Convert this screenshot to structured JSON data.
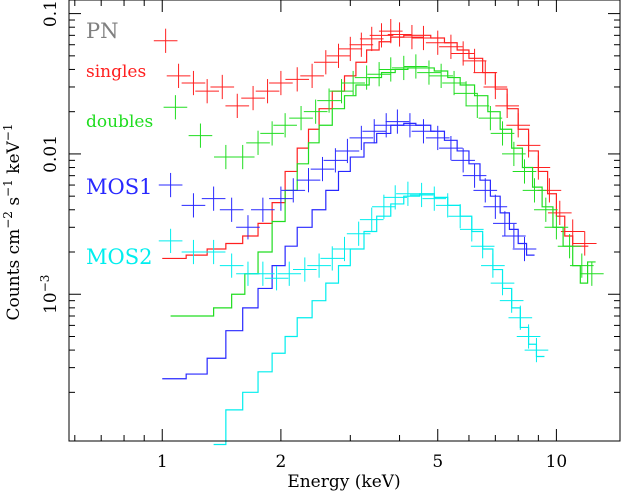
{
  "chart_data": {
    "type": "scatter",
    "xlabel": "Energy (keV)",
    "ylabel": "Counts cm",
    "ylabel_sup1": "−2",
    "ylabel_mid": " s",
    "ylabel_sup2": "−1",
    "ylabel_end": " keV",
    "ylabel_sup3": "−1",
    "xscale": "log",
    "yscale": "log",
    "xlim": [
      0.58,
      14.5
    ],
    "ylim": [
      9e-05,
      0.125
    ],
    "x_ticks": [
      {
        "value": 1,
        "label": "1"
      },
      {
        "value": 2,
        "label": "2"
      },
      {
        "value": 5,
        "label": "5"
      },
      {
        "value": 10,
        "label": "10"
      }
    ],
    "y_ticks": [
      {
        "value": 0.1,
        "label": "0.1"
      },
      {
        "value": 0.01,
        "label": "0.01"
      },
      {
        "value": 0.001,
        "label": "10",
        "sup": "−3"
      }
    ],
    "legend": {
      "title": {
        "text": "PN",
        "color": "#808080"
      },
      "items": [
        {
          "text": "singles",
          "color": "#ff2020"
        },
        {
          "text": "doubles",
          "color": "#20dd20"
        },
        {
          "text": "MOS1",
          "color": "#2828ff"
        },
        {
          "text": "MOS2",
          "color": "#00eeee"
        }
      ]
    },
    "series": [
      {
        "name": "singles",
        "color": "#ff2020",
        "model": [
          [
            1.0,
            0.0018
          ],
          [
            1.15,
            0.0019
          ],
          [
            1.3,
            0.0021
          ],
          [
            1.45,
            0.0023
          ],
          [
            1.6,
            0.0026
          ],
          [
            1.75,
            0.0032
          ],
          [
            1.9,
            0.0045
          ],
          [
            2.05,
            0.0075
          ],
          [
            2.2,
            0.011
          ],
          [
            2.35,
            0.015
          ],
          [
            2.5,
            0.021
          ],
          [
            2.7,
            0.028
          ],
          [
            2.9,
            0.036
          ],
          [
            3.1,
            0.045
          ],
          [
            3.3,
            0.055
          ],
          [
            3.55,
            0.063
          ],
          [
            3.8,
            0.068
          ],
          [
            4.1,
            0.07
          ],
          [
            4.4,
            0.07
          ],
          [
            4.8,
            0.067
          ],
          [
            5.2,
            0.062
          ],
          [
            5.6,
            0.055
          ],
          [
            6.0,
            0.048
          ],
          [
            6.5,
            0.038
          ],
          [
            7.0,
            0.029
          ],
          [
            7.5,
            0.021
          ],
          [
            8.0,
            0.015
          ],
          [
            8.5,
            0.0105
          ],
          [
            9.0,
            0.0075
          ],
          [
            9.5,
            0.0052
          ],
          [
            10.0,
            0.0036
          ],
          [
            10.5,
            0.0026
          ],
          [
            11.0,
            0.0022
          ],
          [
            11.5,
            0.0022
          ]
        ],
        "points": [
          [
            1.02,
            0.064
          ],
          [
            1.1,
            0.036
          ],
          [
            1.2,
            0.032
          ],
          [
            1.3,
            0.028
          ],
          [
            1.42,
            0.03
          ],
          [
            1.55,
            0.022
          ],
          [
            1.7,
            0.025
          ],
          [
            1.85,
            0.028
          ],
          [
            2.0,
            0.032
          ],
          [
            2.2,
            0.034
          ],
          [
            2.4,
            0.036
          ],
          [
            2.6,
            0.045
          ],
          [
            2.8,
            0.05
          ],
          [
            3.0,
            0.056
          ],
          [
            3.2,
            0.06
          ],
          [
            3.4,
            0.066
          ],
          [
            3.6,
            0.07
          ],
          [
            3.8,
            0.075
          ],
          [
            4.0,
            0.071
          ],
          [
            4.3,
            0.068
          ],
          [
            4.6,
            0.067
          ],
          [
            5.0,
            0.062
          ],
          [
            5.4,
            0.058
          ],
          [
            5.8,
            0.052
          ],
          [
            6.2,
            0.046
          ],
          [
            6.6,
            0.038
          ],
          [
            7.0,
            0.03
          ],
          [
            7.5,
            0.022
          ],
          [
            8.0,
            0.016
          ],
          [
            8.5,
            0.0115
          ],
          [
            9.0,
            0.008
          ],
          [
            9.6,
            0.0055
          ],
          [
            10.2,
            0.0038
          ],
          [
            11.0,
            0.0028
          ],
          [
            11.8,
            0.0023
          ]
        ]
      },
      {
        "name": "doubles",
        "color": "#20dd20",
        "model": [
          [
            1.05,
            0.0007
          ],
          [
            1.2,
            0.0007
          ],
          [
            1.35,
            0.0008
          ],
          [
            1.5,
            0.001
          ],
          [
            1.62,
            0.0014
          ],
          [
            1.75,
            0.002
          ],
          [
            1.9,
            0.0033
          ],
          [
            2.05,
            0.0055
          ],
          [
            2.2,
            0.0085
          ],
          [
            2.35,
            0.012
          ],
          [
            2.5,
            0.016
          ],
          [
            2.7,
            0.021
          ],
          [
            2.9,
            0.026
          ],
          [
            3.1,
            0.031
          ],
          [
            3.35,
            0.035
          ],
          [
            3.6,
            0.038
          ],
          [
            3.9,
            0.04
          ],
          [
            4.2,
            0.041
          ],
          [
            4.5,
            0.041
          ],
          [
            4.9,
            0.039
          ],
          [
            5.3,
            0.035
          ],
          [
            5.7,
            0.031
          ],
          [
            6.2,
            0.026
          ],
          [
            6.7,
            0.02
          ],
          [
            7.2,
            0.015
          ],
          [
            7.7,
            0.011
          ],
          [
            8.2,
            0.008
          ],
          [
            8.7,
            0.0058
          ],
          [
            9.2,
            0.0042
          ],
          [
            9.8,
            0.003
          ],
          [
            10.4,
            0.0022
          ],
          [
            11.0,
            0.0016
          ],
          [
            11.5,
            0.0012
          ],
          [
            12.0,
            0.0017
          ]
        ],
        "points": [
          [
            1.08,
            0.0215
          ],
          [
            1.25,
            0.0135
          ],
          [
            1.45,
            0.0095
          ],
          [
            1.6,
            0.0095
          ],
          [
            1.75,
            0.012
          ],
          [
            1.9,
            0.014
          ],
          [
            2.05,
            0.016
          ],
          [
            2.25,
            0.018
          ],
          [
            2.45,
            0.02
          ],
          [
            2.65,
            0.024
          ],
          [
            2.85,
            0.028
          ],
          [
            3.05,
            0.032
          ],
          [
            3.3,
            0.035
          ],
          [
            3.55,
            0.037
          ],
          [
            3.8,
            0.04
          ],
          [
            4.1,
            0.041
          ],
          [
            4.4,
            0.042
          ],
          [
            4.75,
            0.038
          ],
          [
            5.1,
            0.036
          ],
          [
            5.5,
            0.032
          ],
          [
            5.9,
            0.027
          ],
          [
            6.3,
            0.022
          ],
          [
            6.8,
            0.018
          ],
          [
            7.3,
            0.014
          ],
          [
            7.8,
            0.01
          ],
          [
            8.3,
            0.0075
          ],
          [
            8.8,
            0.0055
          ],
          [
            9.4,
            0.004
          ],
          [
            10.0,
            0.003
          ],
          [
            10.8,
            0.0022
          ],
          [
            11.6,
            0.0016
          ],
          [
            12.3,
            0.0014
          ]
        ]
      },
      {
        "name": "MOS1",
        "color": "#2828ff",
        "model": [
          [
            1.0,
            0.00025
          ],
          [
            1.15,
            0.00027
          ],
          [
            1.3,
            0.00035
          ],
          [
            1.45,
            0.00055
          ],
          [
            1.6,
            0.0008
          ],
          [
            1.75,
            0.0011
          ],
          [
            1.9,
            0.0016
          ],
          [
            2.05,
            0.0022
          ],
          [
            2.2,
            0.003
          ],
          [
            2.4,
            0.004
          ],
          [
            2.6,
            0.0055
          ],
          [
            2.8,
            0.0075
          ],
          [
            3.0,
            0.0095
          ],
          [
            3.25,
            0.012
          ],
          [
            3.5,
            0.014
          ],
          [
            3.8,
            0.016
          ],
          [
            4.1,
            0.0165
          ],
          [
            4.4,
            0.016
          ],
          [
            4.8,
            0.0145
          ],
          [
            5.2,
            0.0125
          ],
          [
            5.6,
            0.0105
          ],
          [
            6.0,
            0.0085
          ],
          [
            6.4,
            0.0065
          ],
          [
            6.8,
            0.005
          ],
          [
            7.2,
            0.0038
          ],
          [
            7.6,
            0.0029
          ],
          [
            8.0,
            0.0023
          ],
          [
            8.4,
            0.0019
          ]
        ],
        "points": [
          [
            1.05,
            0.006
          ],
          [
            1.2,
            0.0043
          ],
          [
            1.35,
            0.0048
          ],
          [
            1.5,
            0.004
          ],
          [
            1.65,
            0.003
          ],
          [
            1.8,
            0.004
          ],
          [
            2.0,
            0.0048
          ],
          [
            2.15,
            0.0055
          ],
          [
            2.35,
            0.0065
          ],
          [
            2.55,
            0.0078
          ],
          [
            2.75,
            0.009
          ],
          [
            2.95,
            0.0105
          ],
          [
            3.2,
            0.013
          ],
          [
            3.45,
            0.0145
          ],
          [
            3.7,
            0.016
          ],
          [
            3.95,
            0.017
          ],
          [
            4.25,
            0.016
          ],
          [
            4.6,
            0.0145
          ],
          [
            5.0,
            0.013
          ],
          [
            5.4,
            0.011
          ],
          [
            5.8,
            0.009
          ],
          [
            6.2,
            0.007
          ],
          [
            6.6,
            0.0055
          ],
          [
            7.0,
            0.0042
          ],
          [
            7.4,
            0.0032
          ],
          [
            7.8,
            0.0026
          ],
          [
            8.3,
            0.0021
          ]
        ]
      },
      {
        "name": "MOS2",
        "color": "#00eeee",
        "model": [
          [
            1.35,
            8.5e-05
          ],
          [
            1.45,
            0.00015
          ],
          [
            1.6,
            0.0002
          ],
          [
            1.75,
            0.00028
          ],
          [
            1.9,
            0.00038
          ],
          [
            2.05,
            0.0005
          ],
          [
            2.2,
            0.00068
          ],
          [
            2.4,
            0.0009
          ],
          [
            2.6,
            0.0012
          ],
          [
            2.8,
            0.0016
          ],
          [
            3.0,
            0.0021
          ],
          [
            3.25,
            0.0028
          ],
          [
            3.5,
            0.0036
          ],
          [
            3.8,
            0.0044
          ],
          [
            4.1,
            0.005
          ],
          [
            4.5,
            0.0052
          ],
          [
            4.9,
            0.0049
          ],
          [
            5.3,
            0.0043
          ],
          [
            5.7,
            0.0036
          ],
          [
            6.1,
            0.0028
          ],
          [
            6.5,
            0.0021
          ],
          [
            6.9,
            0.0015
          ],
          [
            7.3,
            0.0011
          ],
          [
            7.7,
            0.0008
          ],
          [
            8.1,
            0.00058
          ],
          [
            8.5,
            0.00044
          ],
          [
            8.9,
            0.00036
          ]
        ],
        "points": [
          [
            1.05,
            0.0024
          ],
          [
            1.2,
            0.002
          ],
          [
            1.35,
            0.002
          ],
          [
            1.5,
            0.0016
          ],
          [
            1.65,
            0.0014
          ],
          [
            1.8,
            0.0014
          ],
          [
            1.95,
            0.0013
          ],
          [
            2.1,
            0.0014
          ],
          [
            2.3,
            0.0015
          ],
          [
            2.5,
            0.0016
          ],
          [
            2.7,
            0.0018
          ],
          [
            2.9,
            0.0021
          ],
          [
            3.15,
            0.0027
          ],
          [
            3.4,
            0.0034
          ],
          [
            3.65,
            0.0042
          ],
          [
            3.9,
            0.0049
          ],
          [
            4.2,
            0.0052
          ],
          [
            4.55,
            0.0051
          ],
          [
            4.9,
            0.0048
          ],
          [
            5.3,
            0.0043
          ],
          [
            5.7,
            0.0036
          ],
          [
            6.1,
            0.0029
          ],
          [
            6.5,
            0.0022
          ],
          [
            6.9,
            0.0016
          ],
          [
            7.3,
            0.0012
          ],
          [
            7.7,
            0.0009
          ],
          [
            8.1,
            0.00068
          ],
          [
            8.5,
            0.0005
          ],
          [
            8.9,
            0.0004
          ]
        ]
      }
    ]
  }
}
